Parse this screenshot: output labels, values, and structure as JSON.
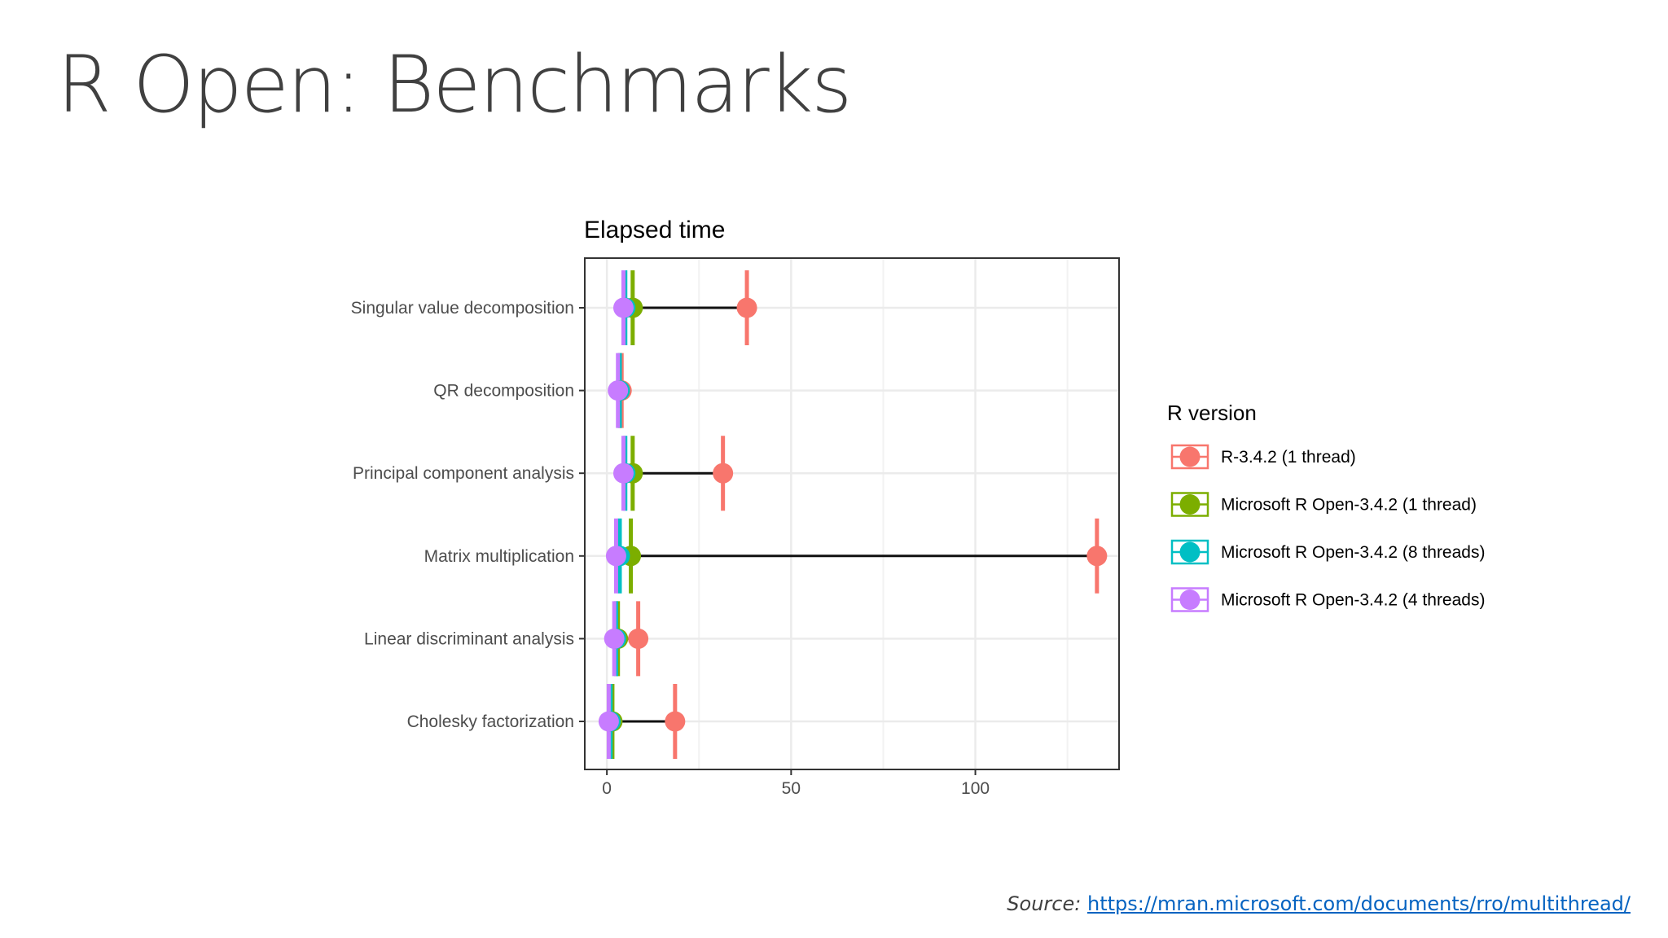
{
  "slide": {
    "title": "R Open: Benchmarks",
    "source_prefix": "Source:",
    "source_url": "https://mran.microsoft.com/documents/rro/multithread/"
  },
  "chart_data": {
    "type": "scatter",
    "title": "Elapsed time",
    "xlabel": "",
    "ylabel": "",
    "xlim": [
      -6,
      139
    ],
    "xticks": [
      0,
      50,
      100
    ],
    "grid": true,
    "legend": {
      "title": "R version",
      "placement": "right"
    },
    "categories": [
      "Singular value decomposition",
      "QR decomposition",
      "Principal component analysis",
      "Matrix multiplication",
      "Linear discriminant analysis",
      "Cholesky factorization"
    ],
    "series": [
      {
        "name": "R-3.4.2 (1 thread)",
        "color": "#F8766D",
        "values": [
          38,
          4,
          31.5,
          133,
          8.5,
          18.5
        ],
        "error": [
          [
            37.5,
            38.5
          ],
          [
            3.5,
            4.5
          ],
          [
            31,
            32
          ],
          [
            132.5,
            133.5
          ],
          [
            8,
            9
          ],
          [
            18,
            19
          ]
        ]
      },
      {
        "name": "Microsoft R Open-3.4.2 (1 thread)",
        "color": "#7CAE00",
        "values": [
          7,
          3.5,
          7,
          6.5,
          3,
          1.5
        ],
        "error": [
          [
            6.5,
            7.5
          ],
          [
            3,
            4
          ],
          [
            6.5,
            7.5
          ],
          [
            6,
            7
          ],
          [
            2.5,
            3.5
          ],
          [
            1,
            2
          ]
        ]
      },
      {
        "name": "Microsoft R Open-3.4.2 (8 threads)",
        "color": "#00BFC4",
        "values": [
          5,
          3.5,
          5,
          3.5,
          2.5,
          1
        ],
        "error": [
          [
            4.5,
            5.5
          ],
          [
            3,
            4
          ],
          [
            4.5,
            5.5
          ],
          [
            3,
            4
          ],
          [
            2,
            3
          ],
          [
            0.5,
            1.5
          ]
        ]
      },
      {
        "name": "Microsoft R Open-3.4.2 (4 threads)",
        "color": "#C77CFF",
        "values": [
          4.5,
          3,
          4.5,
          2.5,
          2,
          0.5
        ],
        "error": [
          [
            4,
            5
          ],
          [
            2.5,
            3.5
          ],
          [
            4,
            5
          ],
          [
            2,
            3
          ],
          [
            1.5,
            2.5
          ],
          [
            0,
            1
          ]
        ]
      }
    ]
  }
}
